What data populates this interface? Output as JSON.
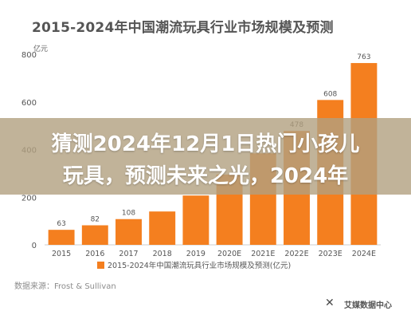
{
  "headline": {
    "line1": "猜测2024年12月1日热门小孩儿",
    "line2": "玩具，预测未来之光，2024年"
  },
  "source": "数据来源：Frost & Sullivan",
  "logo": {
    "mark": "✕",
    "text": "艾媒数据中心"
  },
  "colors": {
    "bar": "#f47f1f",
    "axis": "#cccccc",
    "overlay": "#b2a080"
  },
  "chart_data": {
    "type": "bar",
    "title": "2015-2024年中国潮流玩具行业市场规模及预测",
    "ylabel": "亿元",
    "categories": [
      "2015",
      "2016",
      "2017",
      "2018",
      "2019",
      "2020E",
      "2021E",
      "2022E",
      "2023E",
      "2024E"
    ],
    "values": [
      63,
      82,
      108,
      140,
      207,
      295,
      384,
      478,
      608,
      763
    ],
    "value_labels": [
      "63",
      "82",
      "108",
      "",
      "",
      "",
      "",
      "478",
      "608",
      "763"
    ],
    "ylim": [
      0,
      800
    ],
    "yticks": [
      "0",
      "200",
      "400",
      "600",
      "800"
    ],
    "legend": "2015-2024年中国潮流玩具行业市场规模及预测(亿元)",
    "grid": false,
    "legend_position": "bottom"
  }
}
